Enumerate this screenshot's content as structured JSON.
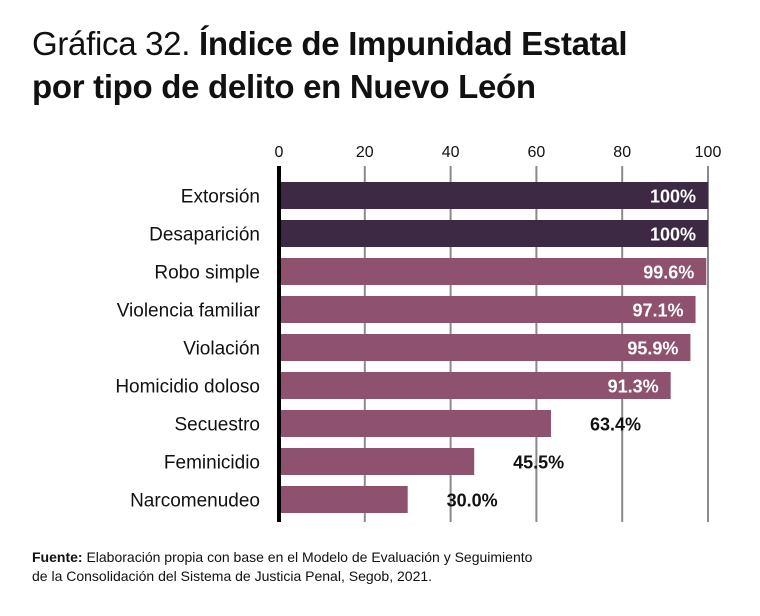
{
  "title": {
    "prefix": "Gráfica 32. ",
    "main_line1": "Índice de Impunidad Estatal",
    "main_line2": "por tipo de delito en Nuevo León"
  },
  "source": {
    "label": "Fuente:",
    "text_line1": " Elaboración propia con base en el Modelo de Evaluación y Seguimiento",
    "text_line2": "de la Consolidación del Sistema de Justicia Penal, Segob, 2021."
  },
  "chart_data": {
    "type": "bar",
    "orientation": "horizontal",
    "title": "Gráfica 32. Índice de Impunidad Estatal por tipo de delito en Nuevo León",
    "xlabel": "",
    "ylabel": "",
    "xlim": [
      0,
      100
    ],
    "x_ticks": [
      0,
      20,
      40,
      60,
      80,
      100
    ],
    "x_axis_position": "top",
    "grid": true,
    "categories": [
      "Extorsión",
      "Desaparición",
      "Robo simple",
      "Violencia familiar",
      "Violación",
      "Homicidio doloso",
      "Secuestro",
      "Feminicidio",
      "Narcomenudeo"
    ],
    "values": [
      100,
      100,
      99.6,
      97.1,
      95.9,
      91.3,
      63.4,
      45.5,
      30.0
    ],
    "labels": [
      "100%",
      "100%",
      "99.6%",
      "97.1%",
      "95.9%",
      "91.3%",
      "63.4%",
      "45.5%",
      "30.0%"
    ],
    "colors": [
      "#3e2944",
      "#3e2944",
      "#8f526e",
      "#8f526e",
      "#8f526e",
      "#8f526e",
      "#8f526e",
      "#8f526e",
      "#8f526e"
    ],
    "label_inside_threshold": 90
  }
}
